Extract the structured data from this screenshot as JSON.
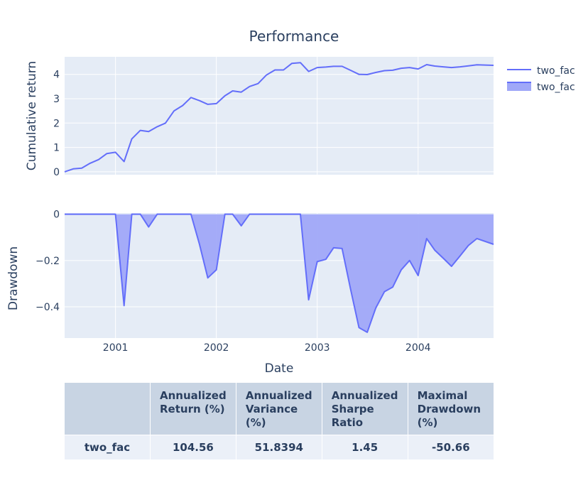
{
  "figure": {
    "title": "Performance",
    "legend": [
      "two_fac",
      "two_fac"
    ],
    "series_color": "#636efa",
    "fill_color": "#a0a8f8",
    "plot_bg": "#e5ecf6"
  },
  "chart_data": [
    {
      "type": "line",
      "title": "Performance",
      "ylabel": "Cumulative return",
      "xlabel": "",
      "x_range": [
        "2000-07-01",
        "2004-09-30"
      ],
      "ylim": [
        -0.12,
        4.72
      ],
      "yticks": [
        "0",
        "1",
        "2",
        "3",
        "4"
      ],
      "grid": true,
      "legend_position": "top-right",
      "series": [
        {
          "name": "two_fac",
          "x": [
            "2000-07-01",
            "2000-08-01",
            "2000-09-01",
            "2000-10-01",
            "2000-11-01",
            "2000-12-01",
            "2001-01-01",
            "2001-02-01",
            "2001-03-01",
            "2001-04-01",
            "2001-05-01",
            "2001-06-01",
            "2001-07-01",
            "2001-08-01",
            "2001-09-01",
            "2001-10-01",
            "2001-11-01",
            "2001-12-01",
            "2002-01-01",
            "2002-02-01",
            "2002-03-01",
            "2002-04-01",
            "2002-05-01",
            "2002-06-01",
            "2002-07-01",
            "2002-08-01",
            "2002-09-01",
            "2002-10-01",
            "2002-11-01",
            "2002-12-01",
            "2003-01-01",
            "2003-02-01",
            "2003-03-01",
            "2003-04-01",
            "2003-05-01",
            "2003-06-01",
            "2003-07-01",
            "2003-08-01",
            "2003-09-01",
            "2003-10-01",
            "2003-11-01",
            "2003-12-01",
            "2004-01-01",
            "2004-02-01",
            "2004-03-01",
            "2004-04-01",
            "2004-05-01",
            "2004-06-01",
            "2004-07-01",
            "2004-08-01",
            "2004-09-30"
          ],
          "values": [
            0.0,
            0.12,
            0.15,
            0.35,
            0.5,
            0.75,
            0.8,
            0.42,
            1.35,
            1.7,
            1.65,
            1.85,
            2.0,
            2.5,
            2.72,
            3.05,
            2.92,
            2.77,
            2.8,
            3.12,
            3.32,
            3.27,
            3.5,
            3.62,
            3.97,
            4.18,
            4.18,
            4.45,
            4.48,
            4.12,
            4.28,
            4.3,
            4.33,
            4.33,
            4.17,
            4.0,
            3.99,
            4.08,
            4.15,
            4.17,
            4.25,
            4.28,
            4.22,
            4.4,
            4.34,
            4.31,
            4.28,
            4.31,
            4.35,
            4.39,
            4.37
          ]
        }
      ]
    },
    {
      "type": "area",
      "title": "",
      "ylabel": "Drawdown",
      "xlabel": "Date",
      "x_range": [
        "2000-07-01",
        "2004-09-30"
      ],
      "ylim": [
        -0.535,
        0.005
      ],
      "yticks": [
        "0",
        "−0.2",
        "−0.4"
      ],
      "xticks": [
        "2001",
        "2002",
        "2003",
        "2004"
      ],
      "grid": true,
      "series": [
        {
          "name": "two_fac",
          "x": [
            "2000-07-01",
            "2000-08-01",
            "2000-09-01",
            "2000-10-01",
            "2000-11-01",
            "2000-12-01",
            "2001-01-01",
            "2001-02-01",
            "2001-03-01",
            "2001-04-01",
            "2001-05-01",
            "2001-06-01",
            "2001-07-01",
            "2001-08-01",
            "2001-09-01",
            "2001-10-01",
            "2001-11-01",
            "2001-12-01",
            "2002-01-01",
            "2002-02-01",
            "2002-03-01",
            "2002-04-01",
            "2002-05-01",
            "2002-06-01",
            "2002-07-01",
            "2002-08-01",
            "2002-09-01",
            "2002-10-01",
            "2002-11-01",
            "2002-12-01",
            "2003-01-01",
            "2003-02-01",
            "2003-03-01",
            "2003-04-01",
            "2003-05-01",
            "2003-06-01",
            "2003-07-01",
            "2003-08-01",
            "2003-09-01",
            "2003-10-01",
            "2003-11-01",
            "2003-12-01",
            "2004-01-01",
            "2004-02-01",
            "2004-03-01",
            "2004-04-01",
            "2004-05-01",
            "2004-06-01",
            "2004-07-01",
            "2004-08-01",
            "2004-09-30"
          ],
          "values": [
            0.0,
            0.0,
            0.0,
            0.0,
            0.0,
            0.0,
            0.0,
            -0.395,
            0.0,
            0.0,
            -0.055,
            0.0,
            0.0,
            0.0,
            0.0,
            0.0,
            -0.13,
            -0.275,
            -0.24,
            0.0,
            0.0,
            -0.05,
            0.0,
            0.0,
            0.0,
            0.0,
            0.0,
            0.0,
            0.0,
            -0.37,
            -0.205,
            -0.195,
            -0.145,
            -0.148,
            -0.32,
            -0.49,
            -0.51,
            -0.405,
            -0.335,
            -0.315,
            -0.24,
            -0.2,
            -0.265,
            -0.105,
            -0.155,
            -0.19,
            -0.225,
            -0.18,
            -0.135,
            -0.105,
            -0.13
          ]
        }
      ]
    }
  ],
  "stats_table": {
    "headers": [
      "",
      "Annualized Return (%)",
      "Annualized Variance (%)",
      "Annualized Sharpe Ratio",
      "Maximal Drawdown (%)"
    ],
    "rows": [
      [
        "two_fac",
        "104.56",
        "51.8394",
        "1.45",
        "-50.66"
      ]
    ]
  }
}
